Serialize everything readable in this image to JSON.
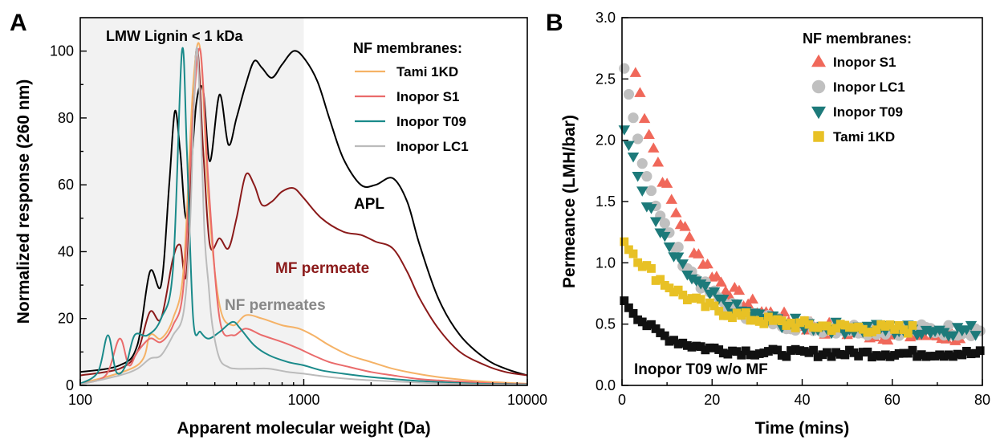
{
  "panels": {
    "a_label": "A",
    "b_label": "B"
  },
  "chart_data": [
    {
      "type": "line",
      "panel": "A",
      "xscale": "log",
      "xlim": [
        100,
        10000
      ],
      "ylim": [
        0,
        110
      ],
      "xticks": [
        "100",
        "1000",
        "10000"
      ],
      "yticks": [
        "0",
        "20",
        "40",
        "60",
        "80",
        "100"
      ],
      "xlabel": "Apparent molecular weight (Da)",
      "ylabel": "Normalized response (260 nm)",
      "shaded_region": {
        "x": [
          100,
          1000
        ],
        "label": "LMW Lignin < 1 kDa",
        "color": "#f2f2f2"
      },
      "legend": {
        "title": "NF membranes:",
        "placement": "top-right"
      },
      "annotations": [
        {
          "text": "APL",
          "x": 2300,
          "y": 66,
          "color": "#000000"
        },
        {
          "text": "MF permeate",
          "x": 1100,
          "y": 40,
          "color": "#8b1a1a"
        },
        {
          "text": "NF permeates",
          "x": 600,
          "y": 24,
          "color": "#888888"
        }
      ],
      "series": [
        {
          "name": "",
          "color": "#000000",
          "label_ref": "APL",
          "x": [
            100,
            150,
            180,
            205,
            230,
            250,
            265,
            280,
            300,
            330,
            355,
            380,
            420,
            460,
            500,
            550,
            600,
            650,
            720,
            800,
            900,
            1000,
            1150,
            1300,
            1500,
            1800,
            2100,
            2500,
            2900,
            3300,
            4000,
            5000,
            6500,
            8000,
            10000
          ],
          "y": [
            4,
            6,
            12,
            34,
            30,
            60,
            82,
            70,
            50,
            84,
            88,
            67,
            87,
            72,
            80,
            90,
            97,
            95,
            92,
            96,
            100,
            98,
            91,
            80,
            68,
            60,
            60,
            62,
            55,
            42,
            26,
            15,
            8,
            5,
            3
          ]
        },
        {
          "name": "",
          "color": "#8b1a1a",
          "label_ref": "MF permeate",
          "x": [
            100,
            150,
            180,
            205,
            230,
            260,
            280,
            300,
            330,
            355,
            380,
            420,
            460,
            500,
            550,
            600,
            650,
            720,
            800,
            900,
            1000,
            1200,
            1500,
            1800,
            2100,
            2500,
            2900,
            3300,
            4000,
            5000,
            6500,
            8000,
            10000
          ],
          "y": [
            3,
            5,
            10,
            22,
            20,
            38,
            42,
            35,
            100,
            70,
            42,
            44,
            41,
            50,
            63,
            60,
            54,
            55,
            58,
            59,
            56,
            50,
            46,
            45,
            43,
            41,
            34,
            26,
            17,
            10,
            6,
            4,
            3
          ]
        },
        {
          "name": "Tami 1KD",
          "color": "#f5b266",
          "x": [
            100,
            180,
            205,
            230,
            260,
            290,
            320,
            345,
            375,
            420,
            480,
            550,
            650,
            800,
            950,
            1100,
            1300,
            1600,
            2000,
            2500,
            3200,
            4000,
            5500,
            7000,
            10000
          ],
          "y": [
            0.5,
            6,
            15,
            14,
            20,
            35,
            90,
            100,
            55,
            24,
            18,
            21,
            20,
            18,
            17,
            15,
            12,
            9,
            7,
            5,
            3.5,
            2.5,
            1.5,
            1,
            0.5
          ]
        },
        {
          "name": "Inopor S1",
          "color": "#ea6b6b",
          "x": [
            100,
            130,
            150,
            165,
            180,
            205,
            230,
            260,
            290,
            320,
            345,
            375,
            420,
            480,
            550,
            650,
            800,
            950,
            1100,
            1300,
            1600,
            2000,
            2500,
            3200,
            4000,
            5500,
            7000,
            10000
          ],
          "y": [
            0.5,
            3,
            14,
            6,
            10,
            14,
            13,
            18,
            30,
            82,
            100,
            60,
            20,
            15,
            17,
            15,
            13,
            11,
            9,
            7,
            5.5,
            4,
            3,
            2,
            1.5,
            1,
            0.6,
            0.4
          ]
        },
        {
          "name": "Inopor T09",
          "color": "#1a8a8a",
          "x": [
            100,
            120,
            133,
            145,
            160,
            175,
            200,
            230,
            260,
            285,
            300,
            320,
            345,
            375,
            420,
            480,
            520,
            600,
            700,
            850,
            1000,
            1200,
            1500,
            2000,
            3000,
            4000,
            6000,
            10000
          ],
          "y": [
            0.5,
            4,
            15,
            4,
            6,
            15,
            15,
            20,
            35,
            100,
            70,
            20,
            16,
            14,
            16,
            19,
            17,
            12,
            9,
            7,
            6,
            4.5,
            3.5,
            2.5,
            1.5,
            1,
            0.5,
            0.3
          ]
        },
        {
          "name": "Inopor LC1",
          "color": "#bbbbbb",
          "x": [
            100,
            150,
            180,
            205,
            230,
            260,
            290,
            310,
            330,
            345,
            360,
            375,
            390,
            420,
            460,
            500,
            600,
            700,
            850,
            1000,
            1300,
            1700,
            2500,
            4000,
            6000,
            10000
          ],
          "y": [
            0.3,
            3,
            5,
            8,
            9,
            15,
            22,
            48,
            100,
            80,
            45,
            30,
            18,
            8,
            5.5,
            5,
            5,
            5,
            4,
            3.5,
            2.5,
            1.8,
            1.2,
            0.6,
            0.3,
            0.2
          ]
        }
      ]
    },
    {
      "type": "scatter",
      "panel": "B",
      "xlim": [
        0,
        80
      ],
      "ylim": [
        0,
        3.0
      ],
      "xticks": [
        "0",
        "20",
        "40",
        "60",
        "80"
      ],
      "yticks": [
        "0.0",
        "0.5",
        "1.0",
        "1.5",
        "2.0",
        "2.5",
        "3.0"
      ],
      "xlabel": "Time (mins)",
      "ylabel": "Permeance (LMH/bar)",
      "legend": {
        "title": "NF membranes:",
        "placement": "top-right"
      },
      "annotations": [
        {
          "text": "Inopor T09 w/o MF",
          "x": 2,
          "y": 0.15,
          "color": "#000000"
        }
      ],
      "series": [
        {
          "name": "Inopor S1",
          "marker": "triangle-up",
          "color": "#f0685a",
          "start_y": 2.55,
          "end_y": 0.4,
          "tau": 12,
          "t_start": 3,
          "t_end": 79,
          "step": 1.0,
          "noise": 0.06
        },
        {
          "name": "Inopor LC1",
          "marker": "circle",
          "color": "#c0c0c0",
          "start_y": 2.55,
          "end_y": 0.45,
          "tau": 10,
          "t_start": 0.5,
          "t_end": 79.5,
          "step": 1.0,
          "noise": 0.05
        },
        {
          "name": "Inopor T09",
          "marker": "triangle-down",
          "color": "#1d7a7a",
          "start_y": 2.1,
          "end_y": 0.45,
          "tau": 11,
          "t_start": 0.5,
          "t_end": 79,
          "step": 1.0,
          "noise": 0.05
        },
        {
          "name": "Tami 1KD",
          "marker": "square",
          "color": "#e8c125",
          "start_y": 1.18,
          "end_y": 0.45,
          "tau": 14,
          "t_start": 0.5,
          "t_end": 65,
          "step": 1.0,
          "noise": 0.04
        },
        {
          "name": "",
          "label_ref": "Inopor T09 w/o MF",
          "marker": "square",
          "color": "#111111",
          "start_y": 0.7,
          "end_y": 0.26,
          "tau": 8,
          "t_start": 0.5,
          "t_end": 79.5,
          "step": 1.0,
          "noise": 0.03
        }
      ]
    }
  ]
}
